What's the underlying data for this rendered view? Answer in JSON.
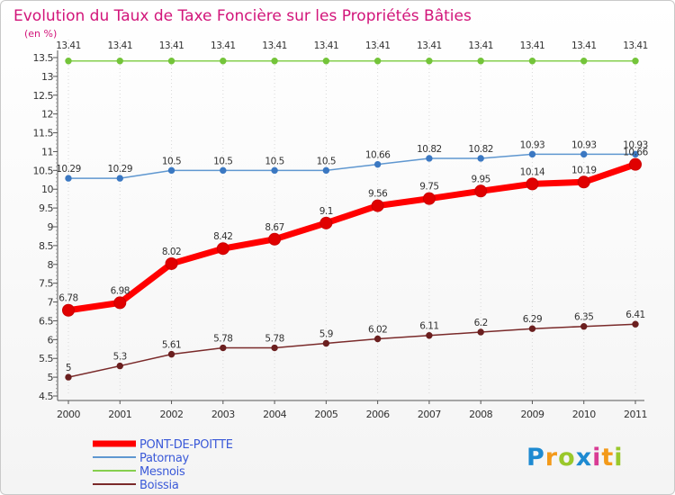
{
  "chart_data": {
    "type": "line",
    "title": "Evolution du Taux de Taxe Foncière sur les Propriétés Bâties",
    "ylabel": "(en %)",
    "xlabel": "",
    "x": [
      "2000",
      "2001",
      "2002",
      "2003",
      "2004",
      "2005",
      "2006",
      "2007",
      "2008",
      "2009",
      "2010",
      "2011"
    ],
    "ylim": [
      4.5,
      13.5
    ],
    "yticks": [
      "4.5",
      "5",
      "5.5",
      "6",
      "6.5",
      "7",
      "7.5",
      "8",
      "8.5",
      "9",
      "9.5",
      "10",
      "10.5",
      "11",
      "11.5",
      "12",
      "12.5",
      "13",
      "13.5"
    ],
    "series": [
      {
        "name": "PONT-DE-POITTE",
        "color": "#ff0000",
        "marker_color": "#e00000",
        "values": [
          6.78,
          6.98,
          8.02,
          8.42,
          8.67,
          9.1,
          9.56,
          9.75,
          9.95,
          10.14,
          10.19,
          10.66
        ],
        "labels": [
          "6.78",
          "6.98",
          "8.02",
          "8.42",
          "8.67",
          "9.1",
          "9.56",
          "9.75",
          "9.95",
          "10.14",
          "10.19",
          "10.66"
        ]
      },
      {
        "name": "Patornay",
        "color": "#5f97d0",
        "marker_color": "#3b78c2",
        "values": [
          10.29,
          10.29,
          10.5,
          10.5,
          10.5,
          10.5,
          10.66,
          10.82,
          10.82,
          10.93,
          10.93,
          10.93
        ],
        "labels": [
          "10.29",
          "10.29",
          "10.5",
          "10.5",
          "10.5",
          "10.5",
          "10.66",
          "10.82",
          "10.82",
          "10.93",
          "10.93",
          "10.93"
        ]
      },
      {
        "name": "Mesnois",
        "color": "#86cf4e",
        "marker_color": "#74c43a",
        "values": [
          13.41,
          13.41,
          13.41,
          13.41,
          13.41,
          13.41,
          13.41,
          13.41,
          13.41,
          13.41,
          13.41,
          13.41
        ],
        "labels": [
          "13.41",
          "13.41",
          "13.41",
          "13.41",
          "13.41",
          "13.41",
          "13.41",
          "13.41",
          "13.41",
          "13.41",
          "13.41",
          "13.41"
        ]
      },
      {
        "name": "Boissia",
        "color": "#7a2a2a",
        "marker_color": "#6b1f1f",
        "values": [
          5,
          5.3,
          5.61,
          5.78,
          5.78,
          5.9,
          6.02,
          6.11,
          6.2,
          6.29,
          6.35,
          6.41
        ],
        "labels": [
          "5",
          "5.3",
          "5.61",
          "5.78",
          "5.78",
          "5.9",
          "6.02",
          "6.11",
          "6.2",
          "6.29",
          "6.35",
          "6.41"
        ]
      }
    ],
    "legend": [
      "PONT-DE-POITTE",
      "Patornay",
      "Mesnois",
      "Boissia"
    ],
    "legend_position": "bottom-left"
  },
  "logo": {
    "letters": [
      "P",
      "r",
      "o",
      "x",
      "i",
      "t",
      "i"
    ],
    "colors": [
      "#1e8ad1",
      "#f39a1a",
      "#9ac82b",
      "#1e8ad1",
      "#d93b94",
      "#f39a1a",
      "#9ac82b"
    ]
  }
}
